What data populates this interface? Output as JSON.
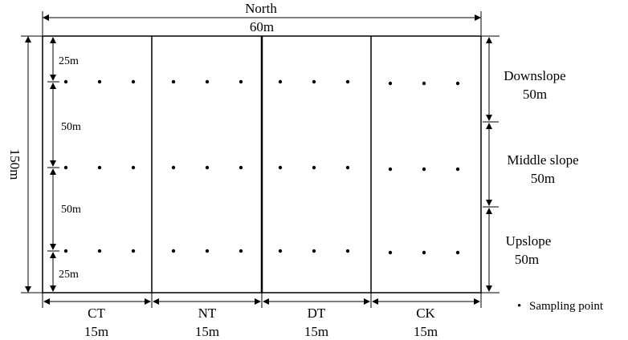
{
  "header": {
    "direction": "North",
    "width": "60m"
  },
  "left": {
    "total_length": "150m",
    "segments": [
      "25m",
      "50m",
      "50m",
      "25m"
    ]
  },
  "right": {
    "zones": [
      {
        "name": "Downslope",
        "length": "50m"
      },
      {
        "name": "Middle slope",
        "length": "50m"
      },
      {
        "name": "Upslope",
        "length": "50m"
      }
    ]
  },
  "bottom": {
    "plots": [
      {
        "name": "CT",
        "width": "15m"
      },
      {
        "name": "NT",
        "width": "15m"
      },
      {
        "name": "DT",
        "width": "15m"
      },
      {
        "name": "CK",
        "width": "15m"
      }
    ]
  },
  "legend": {
    "marker": "•",
    "label": "Sampling point"
  },
  "sampling": {
    "rows": 3,
    "points_per_plot_per_row": 3
  }
}
